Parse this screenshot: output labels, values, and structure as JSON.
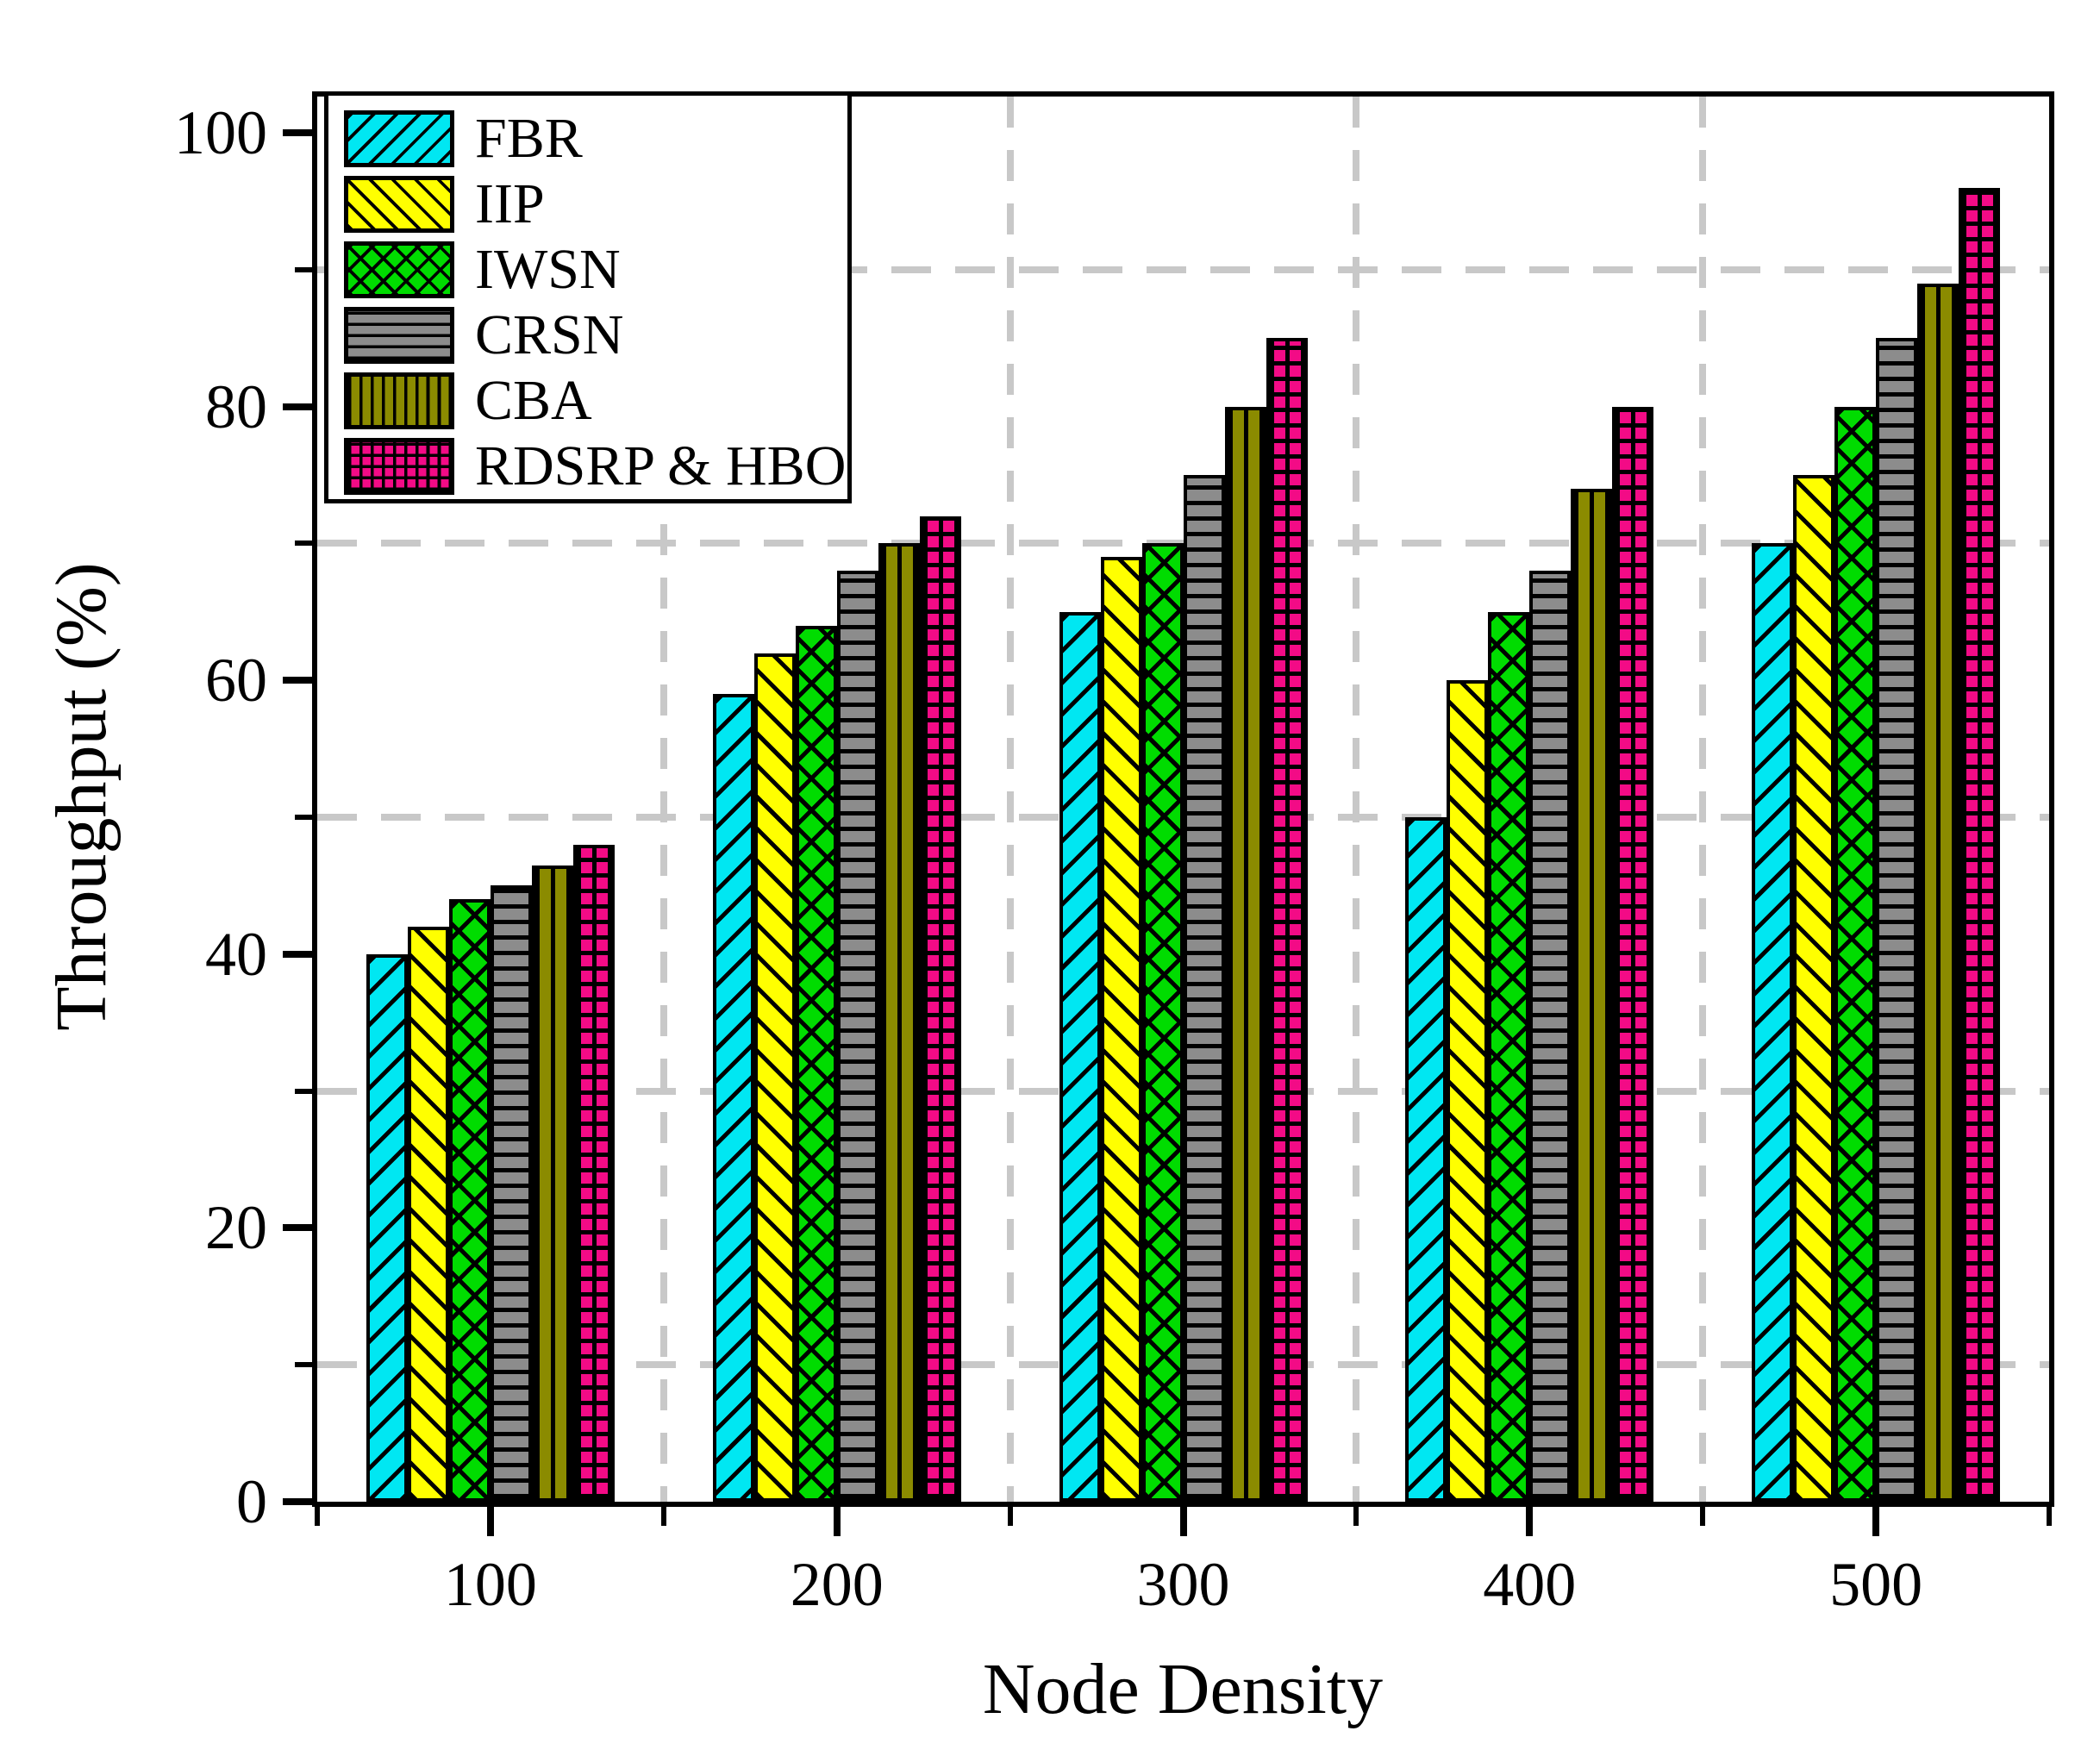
{
  "figure": {
    "background": "#FFFFFF",
    "frame_color": "#000000",
    "gridline_color": "#C8C8C8"
  },
  "chart_data": {
    "type": "bar",
    "title": "",
    "xlabel": "Node Density",
    "ylabel": "Throughput (%)",
    "categories": [
      100,
      200,
      300,
      400,
      500
    ],
    "x_tick_labels": [
      "100",
      "200",
      "300",
      "400",
      "500"
    ],
    "y_ticks": [
      0,
      20,
      40,
      60,
      80,
      100
    ],
    "y_minor_ticks": [
      10,
      30,
      50,
      70,
      90
    ],
    "ylim": [
      0,
      102.65
    ],
    "x_boundaries": [
      50,
      550
    ],
    "x_minor_ticks": [
      50,
      150,
      250,
      350,
      450,
      550
    ],
    "horizontal_gridlines_y": [
      10,
      30,
      50,
      70,
      90
    ],
    "vertical_gridlines_x": [
      150,
      250,
      350,
      450
    ],
    "grid_style": "dashed",
    "legend_position": "top-left",
    "series": [
      {
        "name": "FBR",
        "color": "#00E7F2",
        "pattern": "diagonal-up",
        "values": [
          40,
          59,
          65,
          50,
          70
        ]
      },
      {
        "name": "IIP",
        "color": "#FFFF00",
        "pattern": "diagonal-down",
        "values": [
          42,
          62,
          69,
          60,
          75
        ]
      },
      {
        "name": "IWSN",
        "color": "#00DC00",
        "pattern": "crosshatch",
        "values": [
          44,
          64,
          70,
          65,
          80
        ]
      },
      {
        "name": "CRSN",
        "color": "#8C8C8C",
        "pattern": "horizontal",
        "values": [
          45,
          68,
          75,
          68,
          85
        ]
      },
      {
        "name": "CBA",
        "color": "#8B8B00",
        "pattern": "vertical",
        "values": [
          46.5,
          70,
          80,
          74,
          89
        ]
      },
      {
        "name": "RDSRP & HBO",
        "color": "#F30B86",
        "pattern": "grid",
        "values": [
          48,
          72,
          85,
          80,
          96
        ]
      }
    ]
  }
}
